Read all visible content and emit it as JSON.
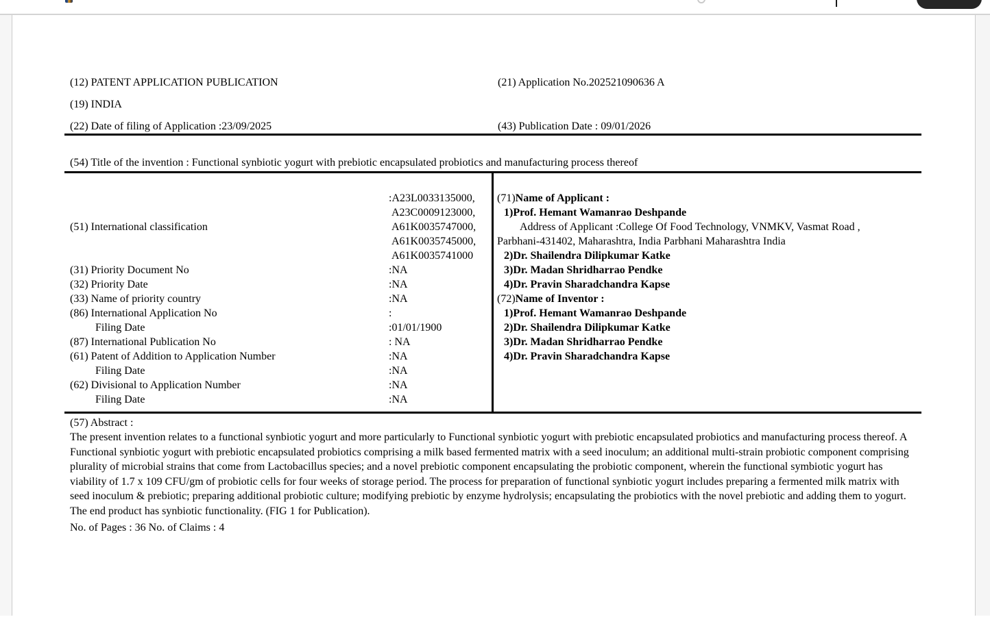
{
  "chrome": {
    "toolbar_button_color": "#262626",
    "divider_color": "#1a1a1a"
  },
  "document": {
    "header": {
      "pub_type": "(12) PATENT APPLICATION PUBLICATION",
      "country": "(19) INDIA",
      "filing_date": "(22) Date of filing of Application :23/09/2025",
      "application_no": "(21) Application No.202521090636 A",
      "publication_date": "(43) Publication Date : 09/01/2026"
    },
    "title": "(54) Title of the invention : Functional synbiotic yogurt with prebiotic encapsulated probiotics and manufacturing process thereof",
    "classification": {
      "label": "(51) International classification",
      "values": [
        ":A23L0033135000,",
        "A23C0009123000,",
        "A61K0035747000,",
        "A61K0035745000,",
        "A61K0035741000"
      ]
    },
    "fields": [
      {
        "label": "(31) Priority Document No",
        "value": ":NA"
      },
      {
        "label": "(32) Priority Date",
        "value": ":NA"
      },
      {
        "label": "(33) Name of priority country",
        "value": ":NA"
      },
      {
        "label": "(86) International Application No",
        "value": ":"
      },
      {
        "label": "Filing Date",
        "value": ":01/01/1900"
      },
      {
        "label": "(87) International Publication No",
        "value": ": NA"
      },
      {
        "label": "(61) Patent of Addition to Application Number",
        "value": ":NA"
      },
      {
        "label": "Filing Date",
        "value": ":NA"
      },
      {
        "label": "(62) Divisional to Application Number",
        "value": ":NA"
      },
      {
        "label": "Filing Date",
        "value": ":NA"
      }
    ],
    "applicant": {
      "num": "(71)",
      "heading": "Name of Applicant :",
      "entry1": "1)Prof. Hemant Wamanrao Deshpande",
      "address_line1": "Address of Applicant :College Of Food Technology, VNMKV, Vasmat Road ,",
      "address_line2": "Parbhani-431402, Maharashtra, India Parbhani Maharashtra India",
      "entry2": "2)Dr. Shailendra Dilipkumar Katke",
      "entry3": "3)Dr. Madan Shridharrao Pendke",
      "entry4": "4)Dr. Pravin Sharadchandra Kapse"
    },
    "inventor": {
      "num": "(72)",
      "heading": "Name of Inventor :",
      "entry1": "1)Prof. Hemant Wamanrao Deshpande",
      "entry2": "2)Dr. Shailendra Dilipkumar Katke",
      "entry3": "3)Dr. Madan Shridharrao Pendke",
      "entry4": "4)Dr. Pravin Sharadchandra Kapse"
    },
    "abstract": {
      "heading": "(57) Abstract :",
      "text": "The present invention relates to a functional synbiotic yogurt and more particularly to Functional synbiotic yogurt with prebiotic encapsulated probiotics and manufacturing process thereof. A Functional synbiotic yogurt with prebiotic encapsulated probiotics comprising a milk based fermented matrix with a seed inoculum; an additional multi-strain probiotic component comprising plurality of microbial strains that come from Lactobacillus species; and a novel prebiotic component encapsulating the probiotic component, wherein the functional symbiotic yogurt has viability of 1.7 x 109 CFU/gm of probiotic cells for four weeks of storage period. The process for preparation of functional synbiotic yogurt includes preparing a fermented milk matrix with seed inoculum & prebiotic; preparing additional probiotic culture; modifying prebiotic by enzyme hydrolysis; encapsulating the probiotics with the novel prebiotic and adding them to yogurt. The end product has synbiotic functionality. (FIG 1 for Publication)."
    },
    "pages_claims": "No. of Pages : 36 No. of Claims : 4"
  }
}
